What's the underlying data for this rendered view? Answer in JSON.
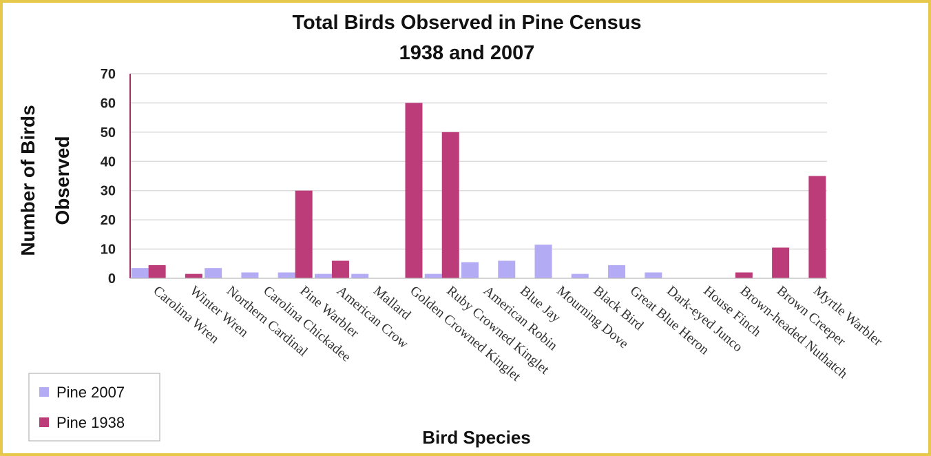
{
  "chart_data": {
    "type": "bar",
    "title": "Total Birds Observed in Pine Census",
    "subtitle": "1938 and 2007",
    "ylabel_lines": [
      "Number of Birds",
      "Observed"
    ],
    "xlabel": "Bird Species",
    "ylim": [
      0,
      70
    ],
    "yticks": [
      0,
      10,
      20,
      30,
      40,
      50,
      60,
      70
    ],
    "grid": true,
    "legend_position": "bottom-left",
    "categories": [
      "Carolina Wren",
      "Winter Wren",
      "Northern Cardinal",
      "Carolina Chickadee",
      "Pine Warbler",
      "American Crow",
      "Mallard",
      "Golden Crowned Kinglet",
      "Ruby Crowned Kinglet",
      "American Robin",
      "Blue Jay",
      "Mourning Dove",
      "Black Bird",
      "Great Blue Heron",
      "Dark-eyed Junco",
      "House Finch",
      "Brown-headed Nuthatch",
      "Brown Creeper",
      "Myrtle Warbler"
    ],
    "series": [
      {
        "name": "Pine 2007",
        "color": "#b3acf5",
        "values": [
          3.5,
          0,
          3.5,
          2,
          2,
          1.5,
          1.5,
          0,
          1.5,
          5.5,
          6,
          11.5,
          1.5,
          4.5,
          2,
          0,
          0,
          0,
          0
        ]
      },
      {
        "name": "Pine 1938",
        "color": "#bb3c78",
        "values": [
          4.5,
          1.5,
          0,
          0,
          30,
          6,
          0,
          60,
          50,
          0,
          0,
          0,
          0,
          0,
          0,
          0,
          2,
          10.5,
          35
        ]
      }
    ]
  }
}
